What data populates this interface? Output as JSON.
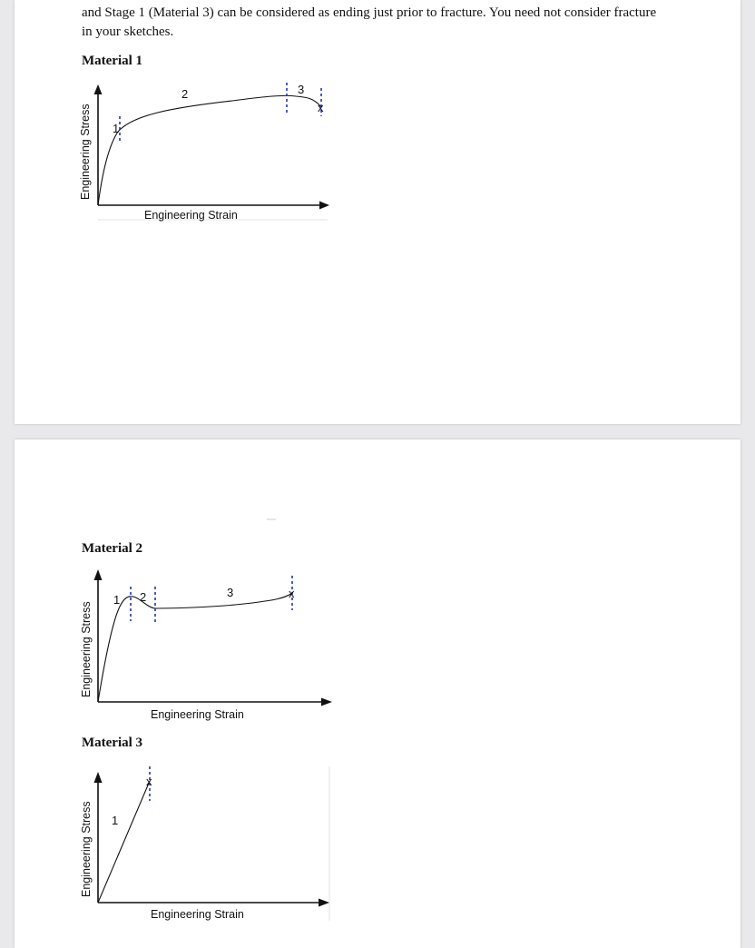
{
  "text": {
    "line1": "and Stage 1 (Material 3) can be considered as ending just prior to fracture. You need not consider fracture",
    "line2": "in your sketches."
  },
  "materials": [
    {
      "heading": "Material 1",
      "x_label": "Engineering Strain",
      "y_label": "Engineering Stress",
      "stages": [
        "1",
        "2",
        "3"
      ],
      "fracture_mark": "x"
    },
    {
      "heading": "Material 2",
      "x_label": "Engineering Strain",
      "y_label": "Engineering Stress",
      "stages": [
        "1",
        "2",
        "3"
      ],
      "fracture_mark": "x"
    },
    {
      "heading": "Material 3",
      "x_label": "Engineering Strain",
      "y_label": "Engineering Stress",
      "stages": [
        "1"
      ],
      "fracture_mark": "x"
    }
  ],
  "colors": {
    "stage_boundary": "#2233bb",
    "curve": "#111111",
    "page": "#ffffff",
    "background": "#e9e9eb"
  }
}
